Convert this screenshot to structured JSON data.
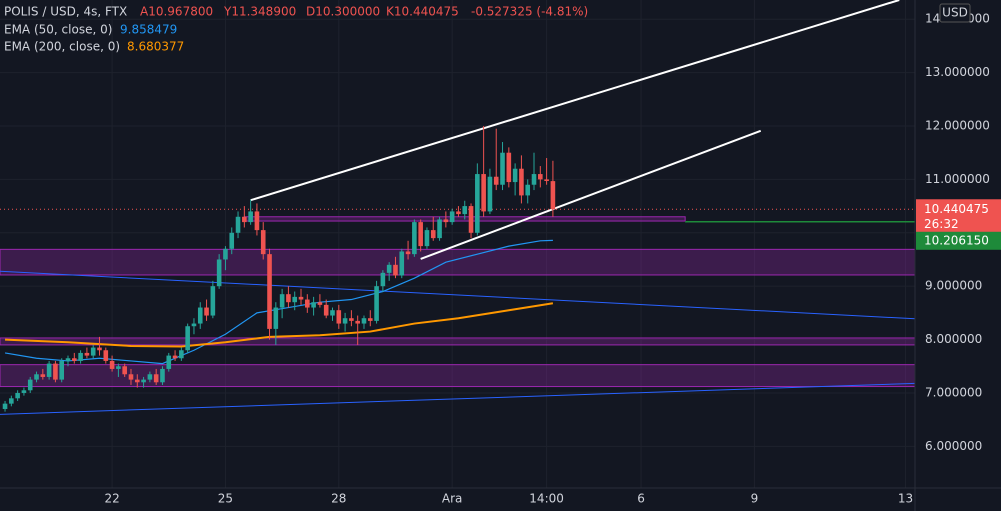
{
  "header": {
    "symbol": "POLIS / USD, 4s, FTX",
    "open": "A10.967800",
    "high": "Y11.348900",
    "low": "D10.300000",
    "close": "K10.440475",
    "change": "-0.527325 (-4.81%)"
  },
  "chart_data": {
    "type": "candlestick",
    "currency": "USD",
    "countdown": "26:32",
    "up_color": "#26a69a",
    "down_color": "#ef5350",
    "xlim": [
      -0.8,
      144.5
    ],
    "xticks": [
      {
        "value": 17,
        "label": "22"
      },
      {
        "value": 35,
        "label": "25"
      },
      {
        "value": 53,
        "label": "28"
      },
      {
        "value": 71,
        "label": "Ara"
      },
      {
        "value": 86,
        "label": "14:00"
      },
      {
        "value": 101,
        "label": "6"
      },
      {
        "value": 119,
        "label": "9"
      },
      {
        "value": 143,
        "label": "13"
      }
    ],
    "ylim": [
      5.22,
      14.36
    ],
    "yticks": [
      {
        "value": 6,
        "label": "6.000000"
      },
      {
        "value": 7,
        "label": "7.000000"
      },
      {
        "value": 8,
        "label": "8.000000"
      },
      {
        "value": 9,
        "label": "9.000000"
      },
      {
        "value": 10,
        "label": "10.000000"
      },
      {
        "value": 11,
        "label": "11.000000"
      },
      {
        "value": 12,
        "label": "12.000000"
      },
      {
        "value": 13,
        "label": "13.000000"
      },
      {
        "value": 14,
        "label": "14.000000"
      }
    ],
    "grid": true,
    "open": [
      6.7,
      6.8,
      6.9,
      7.0,
      7.05,
      7.25,
      7.35,
      7.3,
      7.55,
      7.25,
      7.6,
      7.65,
      7.6,
      7.75,
      7.7,
      7.85,
      7.8,
      7.6,
      7.45,
      7.5,
      7.35,
      7.25,
      7.2,
      7.25,
      7.35,
      7.2,
      7.45,
      7.7,
      7.65,
      7.8,
      8.25,
      8.3,
      8.6,
      8.45,
      9.0,
      9.5,
      9.7,
      10.0,
      10.3,
      10.2,
      10.4,
      10.05,
      9.6,
      8.2,
      8.6,
      8.85,
      8.7,
      8.8,
      8.75,
      8.6,
      8.7,
      8.65,
      8.45,
      8.55,
      8.3,
      8.4,
      8.35,
      8.3,
      8.4,
      8.35,
      9.0,
      9.25,
      9.4,
      9.2,
      9.65,
      9.6,
      10.2,
      9.75,
      10.05,
      9.9,
      10.25,
      10.2,
      10.4,
      10.35,
      10.5,
      10.0,
      11.1,
      10.4,
      11.05,
      10.9,
      11.5,
      10.95,
      11.2,
      10.7,
      10.9,
      11.1,
      11.0,
      10.9678
    ],
    "high": [
      6.85,
      6.95,
      7.05,
      7.1,
      7.3,
      7.4,
      7.45,
      7.6,
      7.6,
      7.65,
      7.7,
      7.75,
      7.8,
      7.85,
      7.9,
      8.05,
      7.85,
      7.7,
      7.55,
      7.55,
      7.45,
      7.35,
      7.3,
      7.4,
      7.45,
      7.5,
      7.75,
      7.8,
      7.85,
      8.3,
      8.4,
      8.7,
      8.75,
      9.1,
      9.6,
      9.75,
      10.1,
      10.4,
      10.5,
      10.62,
      10.55,
      10.2,
      9.7,
      8.7,
      8.95,
      9.0,
      8.9,
      8.95,
      8.85,
      8.8,
      8.85,
      8.75,
      8.6,
      8.65,
      8.5,
      8.55,
      8.45,
      8.45,
      8.55,
      9.1,
      9.3,
      9.45,
      9.55,
      9.7,
      9.85,
      10.25,
      10.25,
      10.1,
      10.3,
      10.3,
      10.4,
      10.45,
      10.5,
      10.6,
      10.55,
      11.3,
      12.0,
      11.2,
      11.95,
      11.7,
      11.6,
      11.3,
      11.45,
      11.0,
      11.5,
      11.25,
      11.4,
      11.3489
    ],
    "low": [
      6.65,
      6.75,
      6.85,
      6.95,
      7.0,
      7.2,
      7.25,
      7.25,
      7.2,
      7.2,
      7.5,
      7.55,
      7.55,
      7.65,
      7.65,
      7.7,
      7.55,
      7.4,
      7.3,
      7.3,
      7.15,
      7.1,
      7.1,
      7.2,
      7.15,
      7.15,
      7.4,
      7.6,
      7.6,
      7.75,
      8.1,
      8.2,
      8.35,
      8.4,
      8.95,
      9.3,
      9.6,
      9.9,
      10.1,
      10.15,
      9.95,
      9.5,
      8.0,
      7.9,
      8.4,
      8.6,
      8.55,
      8.65,
      8.5,
      8.45,
      8.6,
      8.4,
      8.35,
      8.2,
      8.15,
      8.25,
      7.9,
      8.2,
      8.25,
      8.3,
      8.9,
      9.1,
      9.15,
      9.15,
      9.5,
      9.55,
      9.65,
      9.7,
      9.85,
      9.85,
      10.1,
      10.15,
      10.3,
      10.25,
      9.9,
      9.95,
      10.3,
      10.35,
      10.8,
      10.8,
      10.85,
      10.7,
      10.55,
      10.55,
      10.8,
      10.85,
      10.9,
      10.3
    ],
    "close": [
      6.8,
      6.9,
      7.0,
      7.05,
      7.25,
      7.35,
      7.3,
      7.55,
      7.25,
      7.6,
      7.65,
      7.6,
      7.75,
      7.7,
      7.85,
      7.8,
      7.6,
      7.45,
      7.5,
      7.35,
      7.25,
      7.2,
      7.25,
      7.35,
      7.2,
      7.45,
      7.7,
      7.65,
      7.8,
      8.25,
      8.3,
      8.6,
      8.45,
      9.0,
      9.5,
      9.7,
      10.0,
      10.3,
      10.2,
      10.4,
      10.05,
      9.6,
      8.2,
      8.6,
      8.85,
      8.7,
      8.8,
      8.75,
      8.6,
      8.7,
      8.65,
      8.45,
      8.55,
      8.3,
      8.4,
      8.35,
      8.3,
      8.4,
      8.35,
      9.0,
      9.25,
      9.4,
      9.2,
      9.65,
      9.6,
      10.2,
      9.75,
      10.05,
      9.9,
      10.25,
      10.2,
      10.4,
      10.35,
      10.5,
      10.0,
      11.1,
      10.4,
      11.05,
      10.9,
      11.5,
      10.95,
      11.2,
      10.7,
      10.9,
      11.1,
      11.0,
      10.97,
      10.440475
    ],
    "indicators": [
      {
        "name": "EMA (50, close, 0)",
        "color": "#2196f3",
        "x": [
          0,
          5,
          10,
          15,
          20,
          25,
          30,
          35,
          40,
          45,
          50,
          55,
          60,
          65,
          70,
          75,
          80,
          85,
          87
        ],
        "values": [
          7.75,
          7.65,
          7.6,
          7.65,
          7.6,
          7.55,
          7.8,
          8.1,
          8.5,
          8.6,
          8.7,
          8.75,
          8.9,
          9.15,
          9.45,
          9.6,
          9.75,
          9.85,
          9.858479
        ]
      },
      {
        "name": "EMA (200, close, 0)",
        "color": "#ff9800",
        "x": [
          0,
          10,
          20,
          28,
          35,
          42,
          50,
          58,
          65,
          72,
          80,
          87
        ],
        "values": [
          8.0,
          7.95,
          7.88,
          7.87,
          7.95,
          8.05,
          8.08,
          8.15,
          8.3,
          8.4,
          8.55,
          8.680377
        ]
      }
    ],
    "price_line": {
      "value": 10.20615,
      "label": "10.206150",
      "color": "#1e8a3a",
      "x": 108
    },
    "zones": [
      {
        "top": 10.3,
        "bottom": 10.22,
        "x": [
          38,
          108
        ]
      },
      {
        "top": 9.69,
        "bottom": 9.21
      },
      {
        "top": 8.03,
        "bottom": 7.9
      },
      {
        "top": 7.53,
        "bottom": 7.12
      }
    ],
    "zone_color": "#9c27b0",
    "trendlines": [
      {
        "color": "#ffffff",
        "points": [
          [
            39,
            10.61
          ],
          [
            142,
            14.36
          ]
        ]
      },
      {
        "color": "#ffffff",
        "points": [
          [
            66,
            9.51
          ],
          [
            120,
            11.91
          ]
        ]
      },
      {
        "color": "#2962ff",
        "points": [
          [
            -0.8,
            9.28
          ],
          [
            144.5,
            8.39
          ]
        ]
      },
      {
        "color": "#2962ff",
        "points": [
          [
            -0.8,
            6.6
          ],
          [
            144.5,
            7.18
          ]
        ]
      }
    ]
  }
}
